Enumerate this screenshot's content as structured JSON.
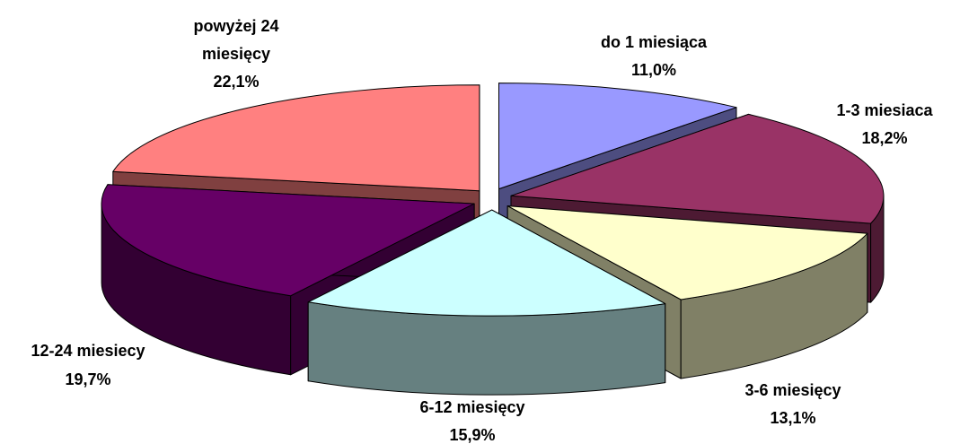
{
  "chart_data": {
    "type": "pie",
    "style": "3d-exploded",
    "legend": "none",
    "slices": [
      {
        "name": "do 1 miesiąca",
        "line1": "do 1 miesiąca",
        "line2": "",
        "percent_label": "11,0%",
        "value": 11.0,
        "top_color": "#9999FF",
        "side_color": "#4D4D80"
      },
      {
        "name": "1-3 miesiaca",
        "line1": "1-3 miesiaca",
        "line2": "",
        "percent_label": "18,2%",
        "value": 18.2,
        "top_color": "#993366",
        "side_color": "#4D1A33"
      },
      {
        "name": "3-6 miesięcy",
        "line1": "3-6 miesięcy",
        "line2": "",
        "percent_label": "13,1%",
        "value": 13.1,
        "top_color": "#FFFFCC",
        "side_color": "#808066"
      },
      {
        "name": "6-12 miesięcy",
        "line1": "6-12 miesięcy",
        "line2": "",
        "percent_label": "15,9%",
        "value": 15.9,
        "top_color": "#CCFFFF",
        "side_color": "#668080"
      },
      {
        "name": "12-24 miesiecy",
        "line1": "12-24 miesiecy",
        "line2": "",
        "percent_label": "19,7%",
        "value": 19.7,
        "top_color": "#660066",
        "side_color": "#330033"
      },
      {
        "name": "powyżej 24 miesięcy",
        "line1": "powyżej 24",
        "line2": "miesięcy",
        "percent_label": "22,1%",
        "value": 22.1,
        "top_color": "#FF8080",
        "side_color": "#804040"
      }
    ]
  }
}
